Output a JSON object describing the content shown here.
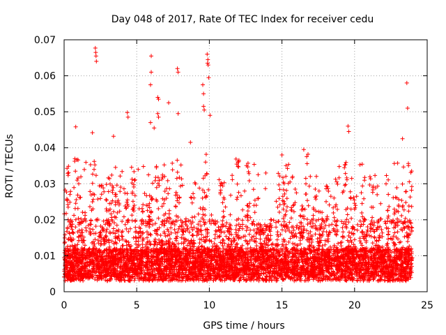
{
  "chart_data": {
    "type": "scatter",
    "title": "Day 048 of 2017, Rate Of TEC Index for receiver cedu",
    "xlabel": "GPS time / hours",
    "ylabel": "ROTI / TECUs",
    "xlim": [
      0,
      25
    ],
    "ylim": [
      0,
      0.07
    ],
    "x_ticks": [
      0,
      5,
      10,
      15,
      20,
      25
    ],
    "x_tick_labels": [
      "0",
      "5",
      "10",
      "15",
      "20",
      "25"
    ],
    "y_ticks": [
      0,
      0.01,
      0.02,
      0.03,
      0.04,
      0.05,
      0.06,
      0.07
    ],
    "y_tick_labels": [
      "0",
      "0.01",
      "0.02",
      "0.03",
      "0.04",
      "0.05",
      "0.06",
      "0.07"
    ],
    "grid": true,
    "marker": "+",
    "color": "#ff0000",
    "series": [
      {
        "name": "ROTI",
        "notable_points": [
          {
            "x": 2.15,
            "y": 0.0677
          },
          {
            "x": 2.18,
            "y": 0.0665
          },
          {
            "x": 2.2,
            "y": 0.0655
          },
          {
            "x": 2.22,
            "y": 0.064
          },
          {
            "x": 6.0,
            "y": 0.0655
          },
          {
            "x": 6.0,
            "y": 0.061
          },
          {
            "x": 5.95,
            "y": 0.0575
          },
          {
            "x": 9.85,
            "y": 0.066
          },
          {
            "x": 9.9,
            "y": 0.0645
          },
          {
            "x": 9.88,
            "y": 0.0635
          },
          {
            "x": 9.92,
            "y": 0.063
          },
          {
            "x": 9.95,
            "y": 0.0595
          },
          {
            "x": 7.8,
            "y": 0.062
          },
          {
            "x": 7.85,
            "y": 0.061
          },
          {
            "x": 23.6,
            "y": 0.058
          },
          {
            "x": 23.65,
            "y": 0.051
          },
          {
            "x": 9.55,
            "y": 0.0575
          },
          {
            "x": 9.6,
            "y": 0.055
          },
          {
            "x": 4.35,
            "y": 0.0498
          },
          {
            "x": 4.4,
            "y": 0.0485
          },
          {
            "x": 6.45,
            "y": 0.054
          },
          {
            "x": 6.5,
            "y": 0.0535
          },
          {
            "x": 6.45,
            "y": 0.0495
          },
          {
            "x": 6.5,
            "y": 0.0485
          },
          {
            "x": 7.2,
            "y": 0.0525
          },
          {
            "x": 7.85,
            "y": 0.0495
          },
          {
            "x": 9.6,
            "y": 0.0515
          },
          {
            "x": 9.65,
            "y": 0.0505
          },
          {
            "x": 10.05,
            "y": 0.049
          },
          {
            "x": 5.95,
            "y": 0.047
          },
          {
            "x": 6.2,
            "y": 0.0455
          },
          {
            "x": 19.55,
            "y": 0.046
          },
          {
            "x": 19.6,
            "y": 0.0445
          },
          {
            "x": 0.8,
            "y": 0.0458
          },
          {
            "x": 1.95,
            "y": 0.0442
          },
          {
            "x": 3.4,
            "y": 0.0432
          },
          {
            "x": 8.7,
            "y": 0.0415
          },
          {
            "x": 23.3,
            "y": 0.0425
          },
          {
            "x": 16.5,
            "y": 0.0395
          },
          {
            "x": 15.0,
            "y": 0.038
          }
        ]
      }
    ]
  }
}
